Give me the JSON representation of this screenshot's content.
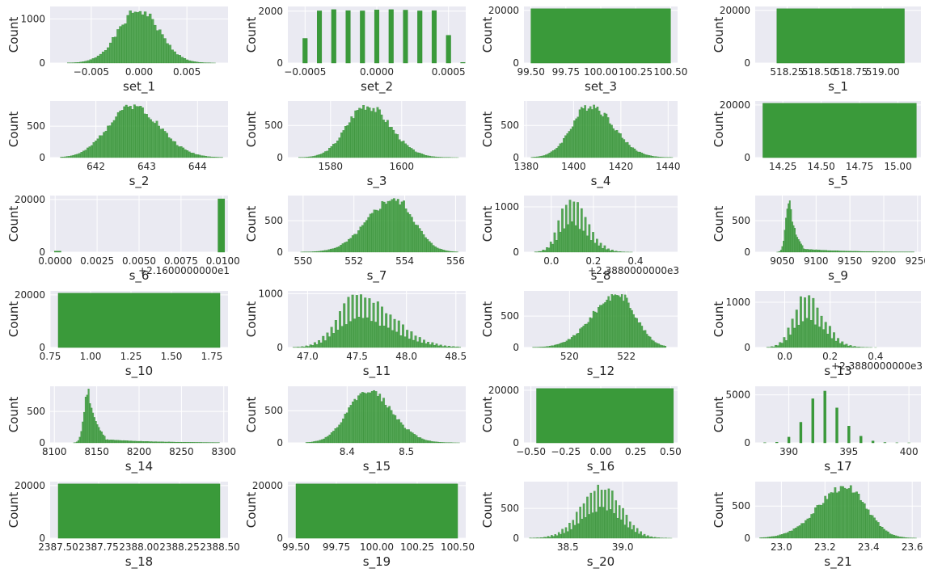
{
  "colors": {
    "bar": "#3a9a3a",
    "bar_edge": "#2f8a2f",
    "plot_bg": "#eaeaf2",
    "grid": "#ffffff"
  },
  "chart_data": [
    {
      "type": "bar",
      "kind": "normal",
      "xlabel": "set_1",
      "ylabel": "Count",
      "xlim": [
        -0.0093,
        0.0093
      ],
      "ylim": [
        0,
        1280
      ],
      "xticks": [
        -0.005,
        0,
        0.005
      ],
      "xtick_labels": [
        "−0.005",
        "0.000",
        "0.005"
      ],
      "yticks": [
        0,
        1000
      ],
      "ytick_labels": [
        "0",
        "1000"
      ],
      "mean": 0.0,
      "sd": 0.00215,
      "peak": 1200,
      "bins": 60,
      "range": [
        -0.0075,
        0.008
      ],
      "seed": 1
    },
    {
      "type": "bar",
      "kind": "bars",
      "xlabel": "set_2",
      "ylabel": "Count",
      "xlim": [
        -0.00062,
        0.00062
      ],
      "ylim": [
        0,
        2180
      ],
      "xticks": [
        -0.0005,
        0,
        0.0005
      ],
      "xtick_labels": [
        "−0.0005",
        "0.0000",
        "0.0005"
      ],
      "yticks": [
        0,
        2000
      ],
      "ytick_labels": [
        "0",
        "2000"
      ],
      "x": [
        -0.0005,
        -0.0004,
        -0.0003,
        -0.0002,
        -0.0001,
        0.0,
        0.0001,
        0.0002,
        0.0003,
        0.0004,
        0.0005,
        0.0006
      ],
      "values": [
        950,
        2010,
        2060,
        2020,
        2010,
        2050,
        2060,
        2040,
        2010,
        2020,
        1070,
        25
      ],
      "width": 3.2e-05
    },
    {
      "type": "bar",
      "kind": "block",
      "xlabel": "set_3",
      "ylabel": "Count",
      "xlim": [
        99.45,
        100.55
      ],
      "ylim": [
        0,
        21500
      ],
      "xticks": [
        99.5,
        99.75,
        100,
        100.25,
        100.5
      ],
      "xtick_labels": [
        "99.50",
        "99.75",
        "100.00",
        "100.25",
        "100.50"
      ],
      "yticks": [
        0,
        20000
      ],
      "ytick_labels": [
        "0",
        "20000"
      ],
      "block": [
        99.5,
        100.5,
        20631
      ]
    },
    {
      "type": "bar",
      "kind": "block",
      "xlabel": "s_1",
      "ylabel": "Count",
      "xlim": [
        518.0,
        519.3
      ],
      "ylim": [
        0,
        21500
      ],
      "xticks": [
        518.25,
        518.5,
        518.75,
        519.0
      ],
      "xtick_labels": [
        "518.25",
        "518.50",
        "518.75",
        "519.00"
      ],
      "yticks": [
        0,
        20000
      ],
      "ytick_labels": [
        "0",
        "20000"
      ],
      "block": [
        518.17,
        519.17,
        20631
      ]
    },
    {
      "type": "bar",
      "kind": "normal",
      "xlabel": "s_2",
      "ylabel": "Count",
      "xlim": [
        641.1,
        644.6
      ],
      "ylim": [
        0,
        900
      ],
      "xticks": [
        642,
        643,
        644
      ],
      "xtick_labels": [
        "642",
        "643",
        "644"
      ],
      "yticks": [
        0,
        500
      ],
      "ytick_labels": [
        "0",
        "500"
      ],
      "mean": 642.7,
      "sd": 0.5,
      "skew": 0.25,
      "peak": 850,
      "bins": 80,
      "range": [
        641.3,
        644.5
      ],
      "seed": 2
    },
    {
      "type": "bar",
      "kind": "normal",
      "xlabel": "s_3",
      "ylabel": "Count",
      "xlim": [
        1568,
        1618
      ],
      "ylim": [
        0,
        880
      ],
      "xticks": [
        1580,
        1600
      ],
      "xtick_labels": [
        "1580",
        "1600"
      ],
      "yticks": [
        0,
        500
      ],
      "ytick_labels": [
        "0",
        "500"
      ],
      "mean": 1590,
      "sd": 6.1,
      "skew": 0.3,
      "peak": 820,
      "bins": 80,
      "range": [
        1571,
        1616
      ],
      "seed": 3
    },
    {
      "type": "bar",
      "kind": "normal",
      "xlabel": "s_4",
      "ylabel": "Count",
      "xlim": [
        1379,
        1444
      ],
      "ylim": [
        0,
        880
      ],
      "xticks": [
        1380,
        1400,
        1420,
        1440
      ],
      "xtick_labels": [
        "1380",
        "1400",
        "1420",
        "1440"
      ],
      "yticks": [
        0,
        500
      ],
      "ytick_labels": [
        "0",
        "500"
      ],
      "mean": 1407,
      "sd": 8.8,
      "skew": 0.35,
      "peak": 820,
      "bins": 80,
      "range": [
        1382,
        1442
      ],
      "seed": 4
    },
    {
      "type": "bar",
      "kind": "block",
      "xlabel": "s_5",
      "ylabel": "Count",
      "xlim": [
        14.07,
        15.15
      ],
      "ylim": [
        0,
        21500
      ],
      "xticks": [
        14.25,
        14.5,
        14.75,
        15.0
      ],
      "xtick_labels": [
        "14.25",
        "14.50",
        "14.75",
        "15.00"
      ],
      "yticks": [
        0,
        20000
      ],
      "ytick_labels": [
        "0",
        "20000"
      ],
      "block": [
        14.12,
        15.12,
        20631
      ]
    },
    {
      "type": "bar",
      "kind": "bars",
      "xlabel": "s_6",
      "ylabel": "Count",
      "offset": "+2.1600000000e1",
      "xlim": [
        -0.0003,
        0.0103
      ],
      "ylim": [
        0,
        21500
      ],
      "xticks": [
        0,
        0.0025,
        0.005,
        0.0075,
        0.01
      ],
      "xtick_labels": [
        "0.0000",
        "0.0025",
        "0.0050",
        "0.0075",
        "0.0100"
      ],
      "yticks": [
        0,
        20000
      ],
      "ytick_labels": [
        "0",
        "20000"
      ],
      "x": [
        0.00015,
        0.0099
      ],
      "values": [
        380,
        20250
      ],
      "width": 0.0004
    },
    {
      "type": "bar",
      "kind": "normal",
      "xlabel": "s_7",
      "ylabel": "Count",
      "xlim": [
        549.4,
        556.4
      ],
      "ylim": [
        0,
        900
      ],
      "xticks": [
        550,
        552,
        554,
        556
      ],
      "xtick_labels": [
        "550",
        "552",
        "554",
        "556"
      ],
      "yticks": [
        0,
        500
      ],
      "ytick_labels": [
        "0",
        "500"
      ],
      "mean": 553.6,
      "sd": 0.9,
      "skew": -0.45,
      "peak": 860,
      "bins": 80,
      "range": [
        549.9,
        556.1
      ],
      "seed": 5
    },
    {
      "type": "bar",
      "kind": "normal",
      "xlabel": "s_8",
      "ylabel": "Count",
      "offset": "+2.3880000000e3",
      "xlim": [
        -0.13,
        0.6
      ],
      "ylim": [
        0,
        1250
      ],
      "xticks": [
        0,
        0.2,
        0.4
      ],
      "xtick_labels": [
        "0.0",
        "0.2",
        "0.4"
      ],
      "yticks": [
        0,
        1000
      ],
      "ytick_labels": [
        "0",
        "1000"
      ],
      "mean": 0.09,
      "sd": 0.065,
      "skew": 0.6,
      "peak": 1170,
      "bins": 70,
      "range": [
        -0.08,
        0.56
      ],
      "seed": 6,
      "gappy": true
    },
    {
      "type": "bar",
      "kind": "normal",
      "xlabel": "s_9",
      "ylabel": "Count",
      "xlim": [
        9010,
        9255
      ],
      "ylim": [
        0,
        900
      ],
      "xticks": [
        9050,
        9100,
        9150,
        9200,
        9250
      ],
      "xtick_labels": [
        "9050",
        "9100",
        "9150",
        "9200",
        "9250"
      ],
      "yticks": [
        0,
        500
      ],
      "ytick_labels": [
        "0",
        "500"
      ],
      "mean": 9060,
      "sd": 7,
      "skew": 3.0,
      "peak": 860,
      "bins": 120,
      "range": [
        9021,
        9245
      ],
      "seed": 7,
      "tail": true
    },
    {
      "type": "bar",
      "kind": "block",
      "xlabel": "s_10",
      "ylabel": "Count",
      "xlim": [
        0.75,
        1.85
      ],
      "ylim": [
        0,
        21500
      ],
      "xticks": [
        0.75,
        1.0,
        1.25,
        1.5,
        1.75
      ],
      "xtick_labels": [
        "0.75",
        "1.00",
        "1.25",
        "1.50",
        "1.75"
      ],
      "yticks": [
        0,
        20000
      ],
      "ytick_labels": [
        "0",
        "20000"
      ],
      "block": [
        0.8,
        1.8,
        20631
      ]
    },
    {
      "type": "bar",
      "kind": "normal",
      "xlabel": "s_11",
      "ylabel": "Count",
      "xlim": [
        46.8,
        48.6
      ],
      "ylim": [
        0,
        1050
      ],
      "xticks": [
        47.0,
        47.5,
        48.0,
        48.5
      ],
      "xtick_labels": [
        "47.0",
        "47.5",
        "48.0",
        "48.5"
      ],
      "yticks": [
        0,
        1000
      ],
      "ytick_labels": [
        "0",
        "1000"
      ],
      "mean": 47.5,
      "sd": 0.27,
      "skew": 0.8,
      "peak": 990,
      "bins": 80,
      "range": [
        46.85,
        48.55
      ],
      "seed": 8,
      "gappy": true
    },
    {
      "type": "bar",
      "kind": "normal",
      "xlabel": "s_12",
      "ylabel": "Count",
      "xlim": [
        518.4,
        523.8
      ],
      "ylim": [
        0,
        900
      ],
      "xticks": [
        520,
        522
      ],
      "xtick_labels": [
        "520",
        "522"
      ],
      "yticks": [
        0,
        500
      ],
      "ytick_labels": [
        "0",
        "500"
      ],
      "mean": 521.7,
      "sd": 0.75,
      "skew": -0.5,
      "peak": 860,
      "bins": 80,
      "range": [
        518.7,
        523.4
      ],
      "seed": 9
    },
    {
      "type": "bar",
      "kind": "normal",
      "xlabel": "s_13",
      "ylabel": "Count",
      "offset": "+2.3880000000e3",
      "xlim": [
        -0.13,
        0.6
      ],
      "ylim": [
        0,
        1250
      ],
      "xticks": [
        0,
        0.2,
        0.4
      ],
      "xtick_labels": [
        "0.0",
        "0.2",
        "0.4"
      ],
      "yticks": [
        0,
        1000
      ],
      "ytick_labels": [
        "0",
        "1000"
      ],
      "mean": 0.09,
      "sd": 0.065,
      "skew": 0.6,
      "peak": 1170,
      "bins": 70,
      "range": [
        -0.08,
        0.56
      ],
      "seed": 10,
      "gappy": true
    },
    {
      "type": "bar",
      "kind": "normal",
      "xlabel": "s_14",
      "ylabel": "Count",
      "xlim": [
        8095,
        8305
      ],
      "ylim": [
        0,
        900
      ],
      "xticks": [
        8100,
        8150,
        8200,
        8250,
        8300
      ],
      "xtick_labels": [
        "8100",
        "8150",
        "8200",
        "8250",
        "8300"
      ],
      "yticks": [
        0,
        500
      ],
      "ytick_labels": [
        "0",
        "500"
      ],
      "mean": 8140,
      "sd": 7,
      "skew": 3.0,
      "peak": 860,
      "bins": 110,
      "range": [
        8105,
        8295
      ],
      "seed": 11,
      "tail": true
    },
    {
      "type": "bar",
      "kind": "normal",
      "xlabel": "s_15",
      "ylabel": "Count",
      "xlim": [
        8.3,
        8.6
      ],
      "ylim": [
        0,
        880
      ],
      "xticks": [
        8.4,
        8.5
      ],
      "xtick_labels": [
        "8.4",
        "8.5"
      ],
      "yticks": [
        0,
        500
      ],
      "ytick_labels": [
        "0",
        "500"
      ],
      "mean": 8.435,
      "sd": 0.037,
      "skew": 0.3,
      "peak": 820,
      "bins": 80,
      "range": [
        8.33,
        8.59
      ],
      "seed": 12
    },
    {
      "type": "bar",
      "kind": "block",
      "xlabel": "s_16",
      "ylabel": "Count",
      "xlim": [
        -0.55,
        0.55
      ],
      "ylim": [
        0,
        21500
      ],
      "xticks": [
        -0.5,
        -0.25,
        0,
        0.25,
        0.5
      ],
      "xtick_labels": [
        "−0.50",
        "−0.25",
        "0.00",
        "0.25",
        "0.50"
      ],
      "yticks": [
        0,
        20000
      ],
      "ytick_labels": [
        "0",
        "20000"
      ],
      "block": [
        -0.46,
        0.52,
        20631
      ]
    },
    {
      "type": "bar",
      "kind": "bars",
      "xlabel": "s_17",
      "ylabel": "Count",
      "xlim": [
        387.2,
        401.0
      ],
      "ylim": [
        0,
        5900
      ],
      "xticks": [
        390,
        395,
        400
      ],
      "xtick_labels": [
        "390",
        "395",
        "400"
      ],
      "yticks": [
        0,
        5000
      ],
      "ytick_labels": [
        "0",
        "5000"
      ],
      "x": [
        388,
        389,
        390,
        391,
        392,
        393,
        394,
        395,
        396,
        397,
        398,
        399,
        400
      ],
      "values": [
        15,
        60,
        600,
        2150,
        4600,
        5400,
        3650,
        1750,
        700,
        200,
        40,
        10,
        3
      ],
      "width": 0.2
    },
    {
      "type": "bar",
      "kind": "block",
      "xlabel": "s_18",
      "ylabel": "Count",
      "xlim": [
        2387.45,
        2388.55
      ],
      "ylim": [
        0,
        21500
      ],
      "xticks": [
        2387.5,
        2387.75,
        2388.0,
        2388.25,
        2388.5
      ],
      "xtick_labels": [
        "2387.50",
        "2387.75",
        "2388.00",
        "2388.25",
        "2388.50"
      ],
      "yticks": [
        0,
        20000
      ],
      "ytick_labels": [
        "0",
        "20000"
      ],
      "block": [
        2387.5,
        2388.5,
        20631
      ]
    },
    {
      "type": "bar",
      "kind": "block",
      "xlabel": "s_19",
      "ylabel": "Count",
      "xlim": [
        99.45,
        100.55
      ],
      "ylim": [
        0,
        21500
      ],
      "xticks": [
        99.5,
        99.75,
        100,
        100.25,
        100.5
      ],
      "xtick_labels": [
        "99.50",
        "99.75",
        "100.00",
        "100.25",
        "100.50"
      ],
      "yticks": [
        0,
        20000
      ],
      "ytick_labels": [
        "0",
        "20000"
      ],
      "block": [
        99.5,
        100.5,
        20631
      ]
    },
    {
      "type": "bar",
      "kind": "normal",
      "xlabel": "s_20",
      "ylabel": "Count",
      "xlim": [
        38.1,
        39.5
      ],
      "ylim": [
        0,
        950
      ],
      "xticks": [
        38.5,
        39.0
      ],
      "xtick_labels": [
        "38.5",
        "39.0"
      ],
      "yticks": [
        0,
        500
      ],
      "ytick_labels": [
        "0",
        "500"
      ],
      "mean": 38.82,
      "sd": 0.18,
      "skew": -0.2,
      "peak": 900,
      "bins": 80,
      "range": [
        38.15,
        39.45
      ],
      "seed": 13,
      "gappy": true
    },
    {
      "type": "bar",
      "kind": "normal",
      "xlabel": "s_21",
      "ylabel": "Count",
      "xlim": [
        22.88,
        23.64
      ],
      "ylim": [
        0,
        880
      ],
      "xticks": [
        23.0,
        23.2,
        23.4,
        23.6
      ],
      "xtick_labels": [
        "23.0",
        "23.2",
        "23.4",
        "23.6"
      ],
      "yticks": [
        0,
        500
      ],
      "ytick_labels": [
        "0",
        "500"
      ],
      "mean": 23.3,
      "sd": 0.11,
      "skew": -0.5,
      "peak": 820,
      "bins": 80,
      "range": [
        22.9,
        23.62
      ],
      "seed": 14
    }
  ]
}
